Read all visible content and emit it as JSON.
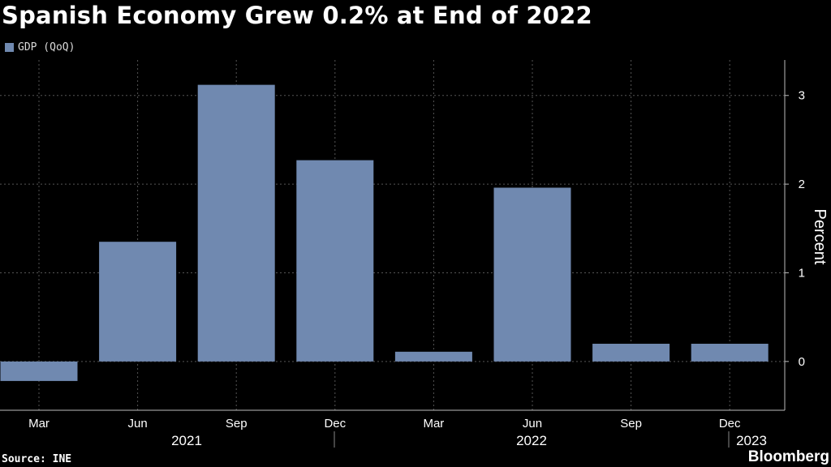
{
  "title": "Spanish Economy Grew 0.2% at End of 2022",
  "source": "Source: INE",
  "brand": "Bloomberg",
  "colors": {
    "bar": "#7089b0",
    "background": "#000000",
    "grid": "#555555",
    "text": "#ffffff"
  },
  "chart_data": {
    "type": "bar",
    "categories": [
      "Mar 2021",
      "Jun 2021",
      "Sep 2021",
      "Dec 2021",
      "Mar 2022",
      "Jun 2022",
      "Sep 2022",
      "Dec 2022"
    ],
    "x_tick_labels": [
      "Mar",
      "Jun",
      "Sep",
      "Dec",
      "Mar",
      "Jun",
      "Sep",
      "Dec"
    ],
    "year_labels": [
      "2021",
      "2022",
      "2023"
    ],
    "series": [
      {
        "name": "GDP (QoQ)",
        "values": [
          -0.22,
          1.35,
          3.12,
          2.27,
          0.11,
          1.96,
          0.2,
          0.2
        ]
      }
    ],
    "ylabel": "Percent",
    "ylim": [
      -0.55,
      3.4
    ],
    "y_ticks": [
      0,
      1,
      2,
      3
    ],
    "grid": true,
    "legend": "top-left"
  }
}
